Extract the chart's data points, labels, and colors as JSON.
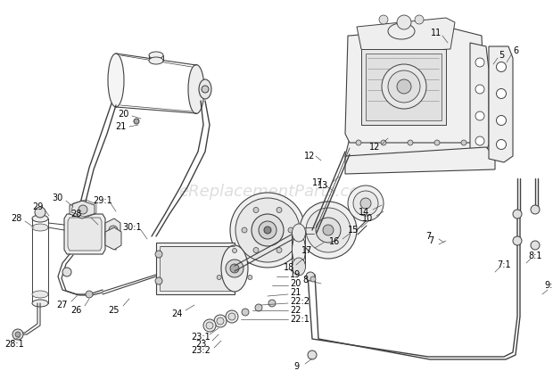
{
  "bg_color": "#ffffff",
  "watermark": "eReplacementParts.com",
  "watermark_color": "#c8c8c8",
  "watermark_fontsize": 13,
  "line_color": "#404040",
  "label_color": "#000000",
  "label_fontsize": 7.0,
  "fig_width": 6.2,
  "fig_height": 4.16,
  "dpi": 100
}
